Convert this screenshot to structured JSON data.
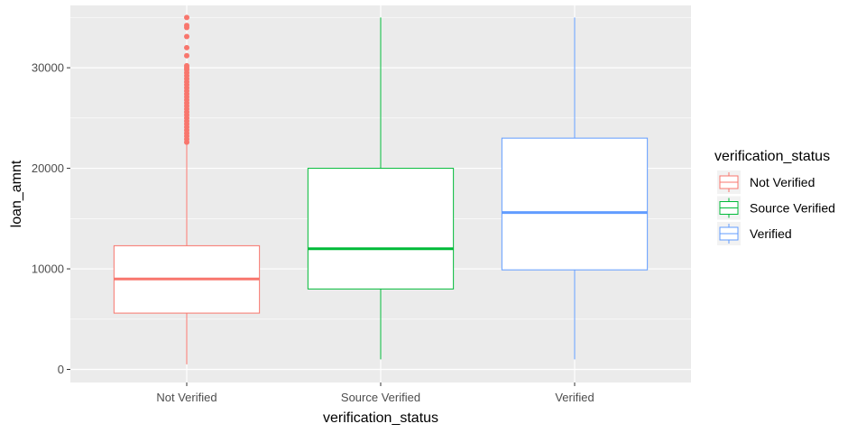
{
  "chart_data": {
    "type": "boxplot",
    "xlabel": "verification_status",
    "ylabel": "loan_amnt",
    "ylim": [
      -1300,
      36200
    ],
    "y_ticks": [
      0,
      10000,
      20000,
      30000
    ],
    "y_tick_labels": [
      "0",
      "10000",
      "20000",
      "30000"
    ],
    "grid": true,
    "panel_background": "#ebebeb",
    "legend": {
      "title": "verification_status",
      "position": "right"
    },
    "categories": [
      "Not Verified",
      "Source Verified",
      "Verified"
    ],
    "series": [
      {
        "name": "Not Verified",
        "color": "#F8766D",
        "whisker_low": 500,
        "q1": 5600,
        "median": 9000,
        "q3": 12300,
        "whisker_high": 22400,
        "outliers": [
          22600,
          22900,
          23200,
          23500,
          23800,
          24100,
          24400,
          24700,
          25000,
          25300,
          25600,
          25900,
          26200,
          26500,
          26800,
          27100,
          27400,
          27700,
          28000,
          28300,
          28600,
          28900,
          29200,
          29500,
          29800,
          30000,
          30200,
          31200,
          32000,
          33100,
          34000,
          34200,
          35000
        ]
      },
      {
        "name": "Source Verified",
        "color": "#00BA38",
        "whisker_low": 1000,
        "q1": 8000,
        "median": 12000,
        "q3": 20000,
        "whisker_high": 35000,
        "outliers": []
      },
      {
        "name": "Verified",
        "color": "#619CFF",
        "whisker_low": 1000,
        "q1": 9900,
        "median": 15600,
        "q3": 23000,
        "whisker_high": 35000,
        "outliers": []
      }
    ]
  }
}
